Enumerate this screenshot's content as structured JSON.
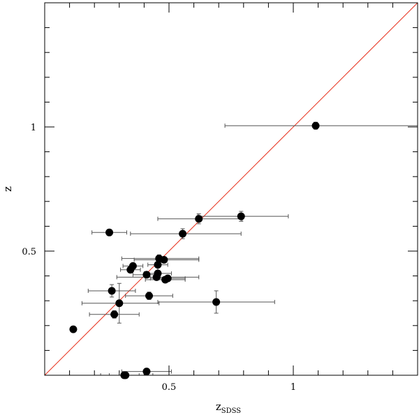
{
  "chart_data": {
    "type": "scatter",
    "title": "",
    "xlabel": "z",
    "xlabel_subscript": "SDSS",
    "ylabel": "z",
    "xlim": [
      0.0,
      1.5
    ],
    "ylim": [
      0.0,
      1.5
    ],
    "grid": false,
    "x_tick_labels": [
      {
        "value": 0.5,
        "label": "0.5"
      },
      {
        "value": 1.0,
        "label": "1"
      }
    ],
    "y_tick_labels": [
      {
        "value": 0.5,
        "label": "0.5"
      },
      {
        "value": 1.0,
        "label": "1"
      }
    ],
    "reference_line": {
      "type": "y=x",
      "color": "#e8321e"
    },
    "marker_color": "#000000",
    "errorbar_color": "#555555",
    "points": [
      {
        "x": 1.09,
        "y": 1.005,
        "xerr": [
          0.365,
          0.455
        ],
        "yerr": 0.014
      },
      {
        "x": 0.79,
        "y": 0.64,
        "xerr": [
          0.175,
          0.19
        ],
        "yerr": 0.02
      },
      {
        "x": 0.62,
        "y": 0.63,
        "xerr": [
          0.165,
          0.175
        ],
        "yerr": 0.02
      },
      {
        "x": 0.555,
        "y": 0.57,
        "xerr": [
          0.21,
          0.235
        ],
        "yerr": 0.02
      },
      {
        "x": 0.26,
        "y": 0.575,
        "xerr": [
          0.07,
          0.07
        ],
        "yerr": 0
      },
      {
        "x": 0.48,
        "y": 0.465,
        "xerr": [
          0.12,
          0.14
        ],
        "yerr": 0.01
      },
      {
        "x": 0.46,
        "y": 0.47,
        "xerr": [
          0.15,
          0.16
        ],
        "yerr": 0.015
      },
      {
        "x": 0.455,
        "y": 0.445,
        "xerr": [
          0.04,
          0.04
        ],
        "yerr": 0.03
      },
      {
        "x": 0.355,
        "y": 0.44,
        "xerr": [
          0.04,
          0.04
        ],
        "yerr": 0.01
      },
      {
        "x": 0.345,
        "y": 0.425,
        "xerr": [
          0.04,
          0.04
        ],
        "yerr": 0.01
      },
      {
        "x": 0.41,
        "y": 0.405,
        "xerr": [
          0.055,
          0.055
        ],
        "yerr": 0.01
      },
      {
        "x": 0.455,
        "y": 0.41,
        "xerr": [
          0.055,
          0.055
        ],
        "yerr": 0.01
      },
      {
        "x": 0.45,
        "y": 0.395,
        "xerr": [
          0.16,
          0.17
        ],
        "yerr": 0.01
      },
      {
        "x": 0.495,
        "y": 0.39,
        "xerr": [
          0.07,
          0.07
        ],
        "yerr": 0.01
      },
      {
        "x": 0.485,
        "y": 0.385,
        "xerr": [
          0.08,
          0.08
        ],
        "yerr": 0.01
      },
      {
        "x": 0.27,
        "y": 0.34,
        "xerr": [
          0.095,
          0.095
        ],
        "yerr": 0.025
      },
      {
        "x": 0.42,
        "y": 0.32,
        "xerr": [
          0.095,
          0.095
        ],
        "yerr": 0.015
      },
      {
        "x": 0.3,
        "y": 0.29,
        "xerr": [
          0.15,
          0.16
        ],
        "yerr": 0.08
      },
      {
        "x": 0.69,
        "y": 0.295,
        "xerr": [
          0.235,
          0.235
        ],
        "yerr": 0.045
      },
      {
        "x": 0.28,
        "y": 0.245,
        "xerr": [
          0.1,
          0.1
        ],
        "yerr": 0.015
      },
      {
        "x": 0.115,
        "y": 0.185,
        "xerr": [
          0,
          0
        ],
        "yerr": 0.01
      },
      {
        "x": 0.41,
        "y": 0.015,
        "xerr": [
          0.1,
          0.1
        ],
        "yerr": 0.01
      },
      {
        "x": 0.325,
        "y": 0.0,
        "xerr": [
          0.1,
          0.11
        ],
        "yerr": 0.01
      },
      {
        "x": 0.32,
        "y": 0.0,
        "xerr": [
          0.06,
          0.06
        ],
        "yerr": 0.01
      }
    ]
  }
}
